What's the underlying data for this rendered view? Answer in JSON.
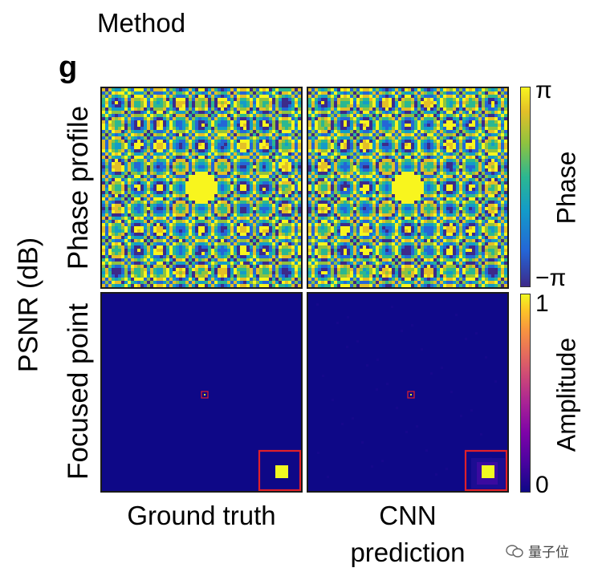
{
  "header": {
    "title": "Method",
    "panel_letter": "g"
  },
  "axis": {
    "outer_ylabel": "PSNR (dB)"
  },
  "rows": [
    {
      "label": "Phase profile"
    },
    {
      "label": "Focused point"
    }
  ],
  "columns": [
    {
      "label": "Ground truth"
    },
    {
      "label": "CNN prediction"
    }
  ],
  "colorbars": {
    "phase": {
      "label": "Phase",
      "max_tick": "π",
      "min_tick": "−π",
      "colors": [
        "#3d2a8a",
        "#2466d6",
        "#139bc9",
        "#2bb791",
        "#8fc33f",
        "#e3bf28",
        "#f8f51e"
      ]
    },
    "amplitude": {
      "label": "Amplitude",
      "max_tick": "1",
      "min_tick": "0",
      "colors": [
        "#0e0887",
        "#7e03a8",
        "#cc4778",
        "#f89540",
        "#f0f921"
      ]
    }
  },
  "highlight_color": "#e0202a",
  "watermark": {
    "text": "量子位"
  }
}
